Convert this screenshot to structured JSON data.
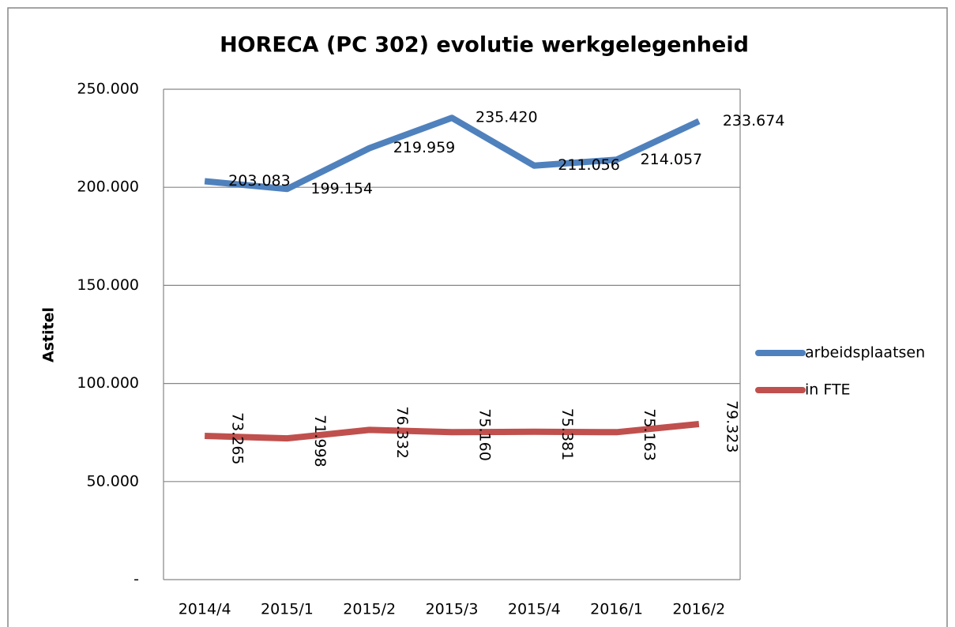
{
  "chart_data": {
    "type": "line",
    "title": "HORECA (PC 302) evolutie werkgelegenheid",
    "ylabel": "Astitel",
    "categories": [
      "2014/4",
      "2015/1",
      "2015/2",
      "2015/3",
      "2015/4",
      "2016/1",
      "2016/2"
    ],
    "series": [
      {
        "name": "arbeidsplaatsen",
        "color": "#4f81bd",
        "values": [
          203083,
          199154,
          219959,
          235420,
          211056,
          214057,
          233674
        ],
        "value_labels": [
          "203.083",
          "199.154",
          "219.959",
          "235.420",
          "211.056",
          "214.057",
          "233.674"
        ]
      },
      {
        "name": "in FTE",
        "color": "#c0504d",
        "values": [
          73265,
          71998,
          76332,
          75160,
          75381,
          75163,
          79323
        ],
        "value_labels": [
          "73.265",
          "71.998",
          "76.332",
          "75.160",
          "75.381",
          "75.163",
          "79.323"
        ]
      }
    ],
    "ylim": [
      0,
      250000
    ],
    "yticks": [
      {
        "value": 0,
        "label": "-"
      },
      {
        "value": 50000,
        "label": "50.000"
      },
      {
        "value": 100000,
        "label": "100.000"
      },
      {
        "value": 150000,
        "label": "150.000"
      },
      {
        "value": 200000,
        "label": "200.000"
      },
      {
        "value": 250000,
        "label": "250.000"
      }
    ],
    "grid": true,
    "legend": "right"
  }
}
